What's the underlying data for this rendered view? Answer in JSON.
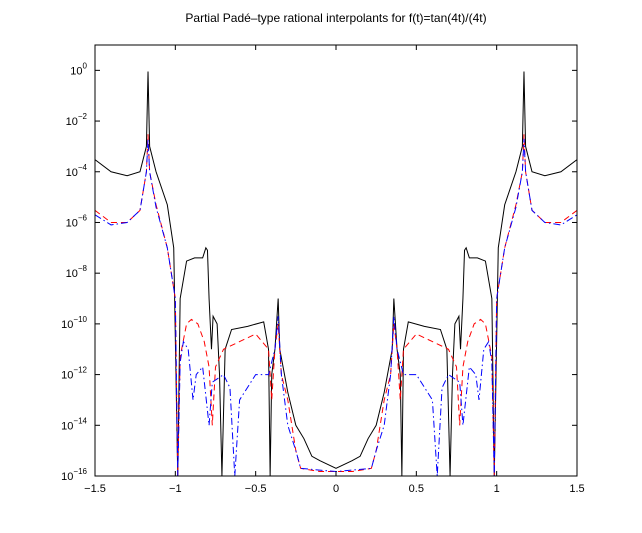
{
  "chart_data": {
    "type": "line",
    "title": "Partial Padé–type rational interpolants for f(t)=tan(4t)/(4t)",
    "xlabel": "",
    "ylabel": "",
    "xlim": [
      -1.5,
      1.5
    ],
    "ylim": [
      1e-16,
      10
    ],
    "yscale": "log",
    "grid": false,
    "x_ticks": [
      -1.5,
      -1,
      -0.5,
      0,
      0.5,
      1,
      1.5
    ],
    "x_tick_labels": [
      "−1.5",
      "−1",
      "−0.5",
      "0",
      "0.5",
      "1",
      "1.5"
    ],
    "y_ticks": [
      {
        "base": "10",
        "exp": "0"
      },
      {
        "base": "10",
        "exp": "−2"
      },
      {
        "base": "10",
        "exp": "−4"
      },
      {
        "base": "10",
        "exp": "−6"
      },
      {
        "base": "10",
        "exp": "−8"
      },
      {
        "base": "10",
        "exp": "−10"
      },
      {
        "base": "10",
        "exp": "−12"
      },
      {
        "base": "10",
        "exp": "−14"
      },
      {
        "base": "10",
        "exp": "−16"
      }
    ],
    "series": [
      {
        "style": "solid",
        "color": "#000000",
        "points": [
          [
            -1.5,
            0.0003
          ],
          [
            -1.4,
            0.0001
          ],
          [
            -1.3,
            7e-05
          ],
          [
            -1.22,
            0.0001
          ],
          [
            -1.18,
            0.001
          ],
          [
            -1.17,
            0.9
          ],
          [
            -1.16,
            0.001
          ],
          [
            -1.12,
            0.0001
          ],
          [
            -1.05,
            5e-06
          ],
          [
            -1.01,
            1e-07
          ],
          [
            -0.985,
            1e-16
          ],
          [
            -0.97,
            1e-09
          ],
          [
            -0.93,
            3e-08
          ],
          [
            -0.88,
            4e-08
          ],
          [
            -0.83,
            4e-08
          ],
          [
            -0.81,
            1e-07
          ],
          [
            -0.8,
            8e-08
          ],
          [
            -0.79,
            1e-09
          ],
          [
            -0.775,
            1e-11
          ],
          [
            -0.765,
            2e-10
          ],
          [
            -0.74,
            1e-10
          ],
          [
            -0.725,
            1e-12
          ],
          [
            -0.71,
            1e-16
          ],
          [
            -0.69,
            1e-11
          ],
          [
            -0.65,
            6e-11
          ],
          [
            -0.55,
            8e-11
          ],
          [
            -0.45,
            1.2e-10
          ],
          [
            -0.42,
            1e-11
          ],
          [
            -0.41,
            1e-16
          ],
          [
            -0.4,
            1e-12
          ],
          [
            -0.38,
            1e-11
          ],
          [
            -0.36,
            1e-09
          ],
          [
            -0.35,
            1e-11
          ],
          [
            -0.3,
            2e-13
          ],
          [
            -0.25,
            1e-14
          ],
          [
            -0.2,
            3e-15
          ],
          [
            -0.15,
            6e-16
          ],
          [
            -0.1,
            4e-16
          ],
          [
            0,
            2e-16
          ],
          [
            0.1,
            4e-16
          ],
          [
            0.15,
            6e-16
          ],
          [
            0.2,
            3e-15
          ],
          [
            0.25,
            1e-14
          ],
          [
            0.3,
            2e-13
          ],
          [
            0.35,
            1e-11
          ],
          [
            0.36,
            1e-09
          ],
          [
            0.38,
            1e-11
          ],
          [
            0.4,
            1e-12
          ],
          [
            0.41,
            1e-16
          ],
          [
            0.42,
            1e-11
          ],
          [
            0.45,
            1.2e-10
          ],
          [
            0.55,
            8e-11
          ],
          [
            0.65,
            6e-11
          ],
          [
            0.69,
            1e-11
          ],
          [
            0.71,
            1e-16
          ],
          [
            0.725,
            1e-12
          ],
          [
            0.74,
            1e-10
          ],
          [
            0.765,
            2e-10
          ],
          [
            0.775,
            1e-11
          ],
          [
            0.79,
            1e-09
          ],
          [
            0.8,
            8e-08
          ],
          [
            0.81,
            1e-07
          ],
          [
            0.83,
            4e-08
          ],
          [
            0.88,
            4e-08
          ],
          [
            0.93,
            3e-08
          ],
          [
            0.97,
            1e-09
          ],
          [
            0.985,
            1e-16
          ],
          [
            1.01,
            1e-07
          ],
          [
            1.05,
            5e-06
          ],
          [
            1.12,
            0.0001
          ],
          [
            1.16,
            0.001
          ],
          [
            1.17,
            0.9
          ],
          [
            1.18,
            0.001
          ],
          [
            1.22,
            0.0001
          ],
          [
            1.3,
            7e-05
          ],
          [
            1.4,
            0.0001
          ],
          [
            1.5,
            0.0003
          ]
        ]
      },
      {
        "style": "dashed",
        "color": "#ff0000",
        "points": [
          [
            -1.5,
            3e-06
          ],
          [
            -1.4,
            1e-06
          ],
          [
            -1.3,
            1e-06
          ],
          [
            -1.22,
            3e-06
          ],
          [
            -1.18,
            0.0001
          ],
          [
            -1.17,
            0.003
          ],
          [
            -1.16,
            0.0001
          ],
          [
            -1.12,
            5e-06
          ],
          [
            -1.05,
            1e-07
          ],
          [
            -1.0,
            1e-09
          ],
          [
            -0.985,
            1e-16
          ],
          [
            -0.97,
            5e-12
          ],
          [
            -0.93,
            1e-10
          ],
          [
            -0.9,
            1.5e-10
          ],
          [
            -0.86,
            1e-10
          ],
          [
            -0.82,
            2e-11
          ],
          [
            -0.79,
            2e-12
          ],
          [
            -0.77,
            1e-14
          ],
          [
            -0.75,
            2e-12
          ],
          [
            -0.7,
            1e-11
          ],
          [
            -0.6,
            2e-11
          ],
          [
            -0.5,
            4e-11
          ],
          [
            -0.42,
            1e-11
          ],
          [
            -0.4,
            1e-13
          ],
          [
            -0.38,
            1e-11
          ],
          [
            -0.36,
            1e-10
          ],
          [
            -0.34,
            1e-12
          ],
          [
            -0.3,
            1e-13
          ],
          [
            -0.25,
            1e-15
          ],
          [
            -0.22,
            2e-16
          ],
          [
            -0.1,
            1.5e-16
          ],
          [
            0,
            1.5e-16
          ],
          [
            0.1,
            1.5e-16
          ],
          [
            0.22,
            2e-16
          ],
          [
            0.25,
            1e-15
          ],
          [
            0.3,
            1e-13
          ],
          [
            0.34,
            1e-12
          ],
          [
            0.36,
            1e-10
          ],
          [
            0.38,
            1e-11
          ],
          [
            0.4,
            1e-13
          ],
          [
            0.42,
            1e-11
          ],
          [
            0.5,
            4e-11
          ],
          [
            0.6,
            2e-11
          ],
          [
            0.7,
            1e-11
          ],
          [
            0.75,
            2e-12
          ],
          [
            0.77,
            1e-14
          ],
          [
            0.79,
            2e-12
          ],
          [
            0.82,
            2e-11
          ],
          [
            0.86,
            1e-10
          ],
          [
            0.9,
            1.5e-10
          ],
          [
            0.93,
            1e-10
          ],
          [
            0.97,
            5e-12
          ],
          [
            0.985,
            1e-16
          ],
          [
            1.0,
            1e-09
          ],
          [
            1.05,
            1e-07
          ],
          [
            1.12,
            5e-06
          ],
          [
            1.16,
            0.0001
          ],
          [
            1.17,
            0.003
          ],
          [
            1.18,
            0.0001
          ],
          [
            1.22,
            3e-06
          ],
          [
            1.3,
            1e-06
          ],
          [
            1.4,
            1e-06
          ],
          [
            1.5,
            3e-06
          ]
        ]
      },
      {
        "style": "dashdot",
        "color": "#0000ff",
        "points": [
          [
            -1.5,
            2e-06
          ],
          [
            -1.4,
            8e-07
          ],
          [
            -1.3,
            1e-06
          ],
          [
            -1.22,
            3e-06
          ],
          [
            -1.18,
            0.0001
          ],
          [
            -1.17,
            0.002
          ],
          [
            -1.16,
            0.0001
          ],
          [
            -1.12,
            4e-06
          ],
          [
            -1.05,
            1e-07
          ],
          [
            -1.0,
            1e-09
          ],
          [
            -0.985,
            1e-16
          ],
          [
            -0.97,
            3e-12
          ],
          [
            -0.95,
            2e-11
          ],
          [
            -0.92,
            1e-11
          ],
          [
            -0.89,
            1e-13
          ],
          [
            -0.87,
            1e-12
          ],
          [
            -0.83,
            2e-12
          ],
          [
            -0.79,
            1e-14
          ],
          [
            -0.77,
            5e-13
          ],
          [
            -0.7,
            1e-12
          ],
          [
            -0.66,
            3e-13
          ],
          [
            -0.63,
            1e-16
          ],
          [
            -0.6,
            1e-13
          ],
          [
            -0.5,
            1e-12
          ],
          [
            -0.42,
            1e-12
          ],
          [
            -0.38,
            1e-11
          ],
          [
            -0.36,
            2e-10
          ],
          [
            -0.34,
            1e-12
          ],
          [
            -0.3,
            1e-14
          ],
          [
            -0.25,
            1e-15
          ],
          [
            -0.22,
            2e-16
          ],
          [
            0,
            1.5e-16
          ],
          [
            0.22,
            2e-16
          ],
          [
            0.25,
            1e-15
          ],
          [
            0.3,
            1e-14
          ],
          [
            0.34,
            1e-12
          ],
          [
            0.36,
            2e-10
          ],
          [
            0.38,
            1e-11
          ],
          [
            0.42,
            1e-12
          ],
          [
            0.5,
            1e-12
          ],
          [
            0.6,
            1e-13
          ],
          [
            0.63,
            1e-16
          ],
          [
            0.66,
            3e-13
          ],
          [
            0.7,
            1e-12
          ],
          [
            0.77,
            5e-13
          ],
          [
            0.79,
            1e-14
          ],
          [
            0.83,
            2e-12
          ],
          [
            0.87,
            1e-12
          ],
          [
            0.89,
            1e-13
          ],
          [
            0.92,
            1e-11
          ],
          [
            0.95,
            2e-11
          ],
          [
            0.97,
            3e-12
          ],
          [
            0.985,
            1e-16
          ],
          [
            1.0,
            1e-09
          ],
          [
            1.05,
            1e-07
          ],
          [
            1.12,
            4e-06
          ],
          [
            1.16,
            0.0001
          ],
          [
            1.17,
            0.002
          ],
          [
            1.18,
            0.0001
          ],
          [
            1.22,
            3e-06
          ],
          [
            1.3,
            1e-06
          ],
          [
            1.4,
            8e-07
          ],
          [
            1.5,
            2e-06
          ]
        ]
      }
    ]
  }
}
